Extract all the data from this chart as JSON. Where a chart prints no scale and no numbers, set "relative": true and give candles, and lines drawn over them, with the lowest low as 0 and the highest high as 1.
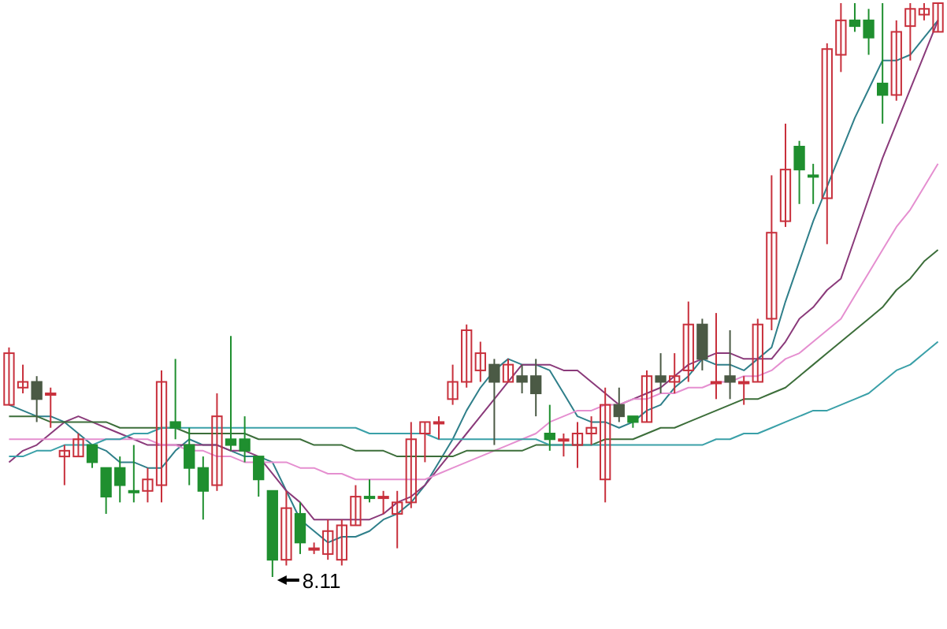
{
  "chart_data": {
    "type": "candlestick",
    "relative": true,
    "categories": [
      null,
      null,
      null,
      null,
      null,
      null,
      null,
      null,
      null,
      null,
      null,
      null,
      null,
      null,
      null,
      null,
      null,
      null,
      null,
      null,
      null,
      null,
      null,
      null,
      null,
      null,
      null,
      null,
      null,
      null,
      null,
      null,
      null,
      null,
      null,
      null,
      null,
      null,
      null,
      null,
      null,
      null,
      null,
      null,
      null,
      null,
      null,
      null,
      null,
      null,
      null,
      null,
      null,
      null,
      null,
      null,
      null,
      null,
      null,
      null,
      null,
      null,
      null,
      null,
      null,
      null,
      null,
      null
    ],
    "ohlc": [
      [
        0.3,
        0.4,
        0.3,
        0.39
      ],
      [
        0.33,
        0.37,
        0.32,
        0.34
      ],
      [
        0.34,
        0.35,
        0.27,
        0.31
      ],
      [
        0.32,
        0.33,
        0.26,
        0.32
      ],
      [
        0.21,
        0.23,
        0.16,
        0.22
      ],
      [
        0.21,
        0.25,
        0.21,
        0.24
      ],
      [
        0.23,
        0.23,
        0.19,
        0.2
      ],
      [
        0.19,
        0.19,
        0.11,
        0.14
      ],
      [
        0.19,
        0.21,
        0.13,
        0.16
      ],
      [
        0.15,
        0.23,
        0.13,
        0.15
      ],
      [
        0.15,
        0.19,
        0.13,
        0.17
      ],
      [
        0.16,
        0.36,
        0.13,
        0.34
      ],
      [
        0.27,
        0.38,
        0.24,
        0.26
      ],
      [
        0.23,
        0.26,
        0.16,
        0.19
      ],
      [
        0.19,
        0.21,
        0.1,
        0.15
      ],
      [
        0.16,
        0.32,
        0.15,
        0.28
      ],
      [
        0.24,
        0.42,
        0.22,
        0.23
      ],
      [
        0.24,
        0.28,
        0.2,
        0.22
      ],
      [
        0.21,
        0.21,
        0.14,
        0.17
      ],
      [
        0.15,
        0.15,
        0.0,
        0.03
      ],
      [
        0.03,
        0.15,
        0.02,
        0.12
      ],
      [
        0.11,
        0.13,
        0.04,
        0.06
      ],
      [
        0.05,
        0.06,
        0.04,
        0.05
      ],
      [
        0.04,
        0.1,
        0.03,
        0.08
      ],
      [
        0.03,
        0.1,
        0.02,
        0.09
      ],
      [
        0.09,
        0.16,
        0.09,
        0.14
      ],
      [
        0.14,
        0.17,
        0.13,
        0.14
      ],
      [
        0.14,
        0.15,
        0.11,
        0.14
      ],
      [
        0.11,
        0.15,
        0.05,
        0.13
      ],
      [
        0.13,
        0.27,
        0.12,
        0.24
      ],
      [
        0.25,
        0.27,
        0.2,
        0.27
      ],
      [
        0.27,
        0.28,
        0.24,
        0.27
      ],
      [
        0.31,
        0.37,
        0.3,
        0.34
      ],
      [
        0.34,
        0.44,
        0.33,
        0.43
      ],
      [
        0.36,
        0.41,
        0.34,
        0.39
      ],
      [
        0.37,
        0.38,
        0.23,
        0.34
      ],
      [
        0.34,
        0.38,
        0.34,
        0.37
      ],
      [
        0.35,
        0.37,
        0.32,
        0.34
      ],
      [
        0.35,
        0.38,
        0.28,
        0.32
      ],
      [
        0.25,
        0.3,
        0.22,
        0.24
      ],
      [
        0.24,
        0.25,
        0.21,
        0.24
      ],
      [
        0.23,
        0.27,
        0.19,
        0.25
      ],
      [
        0.25,
        0.28,
        0.23,
        0.26
      ],
      [
        0.17,
        0.33,
        0.13,
        0.3
      ],
      [
        0.3,
        0.33,
        0.27,
        0.28
      ],
      [
        0.28,
        0.28,
        0.26,
        0.27
      ],
      [
        0.27,
        0.36,
        0.27,
        0.35
      ],
      [
        0.35,
        0.39,
        0.32,
        0.34
      ],
      [
        0.34,
        0.39,
        0.32,
        0.35
      ],
      [
        0.36,
        0.48,
        0.34,
        0.44
      ],
      [
        0.44,
        0.45,
        0.36,
        0.38
      ],
      [
        0.34,
        0.46,
        0.31,
        0.34
      ],
      [
        0.35,
        0.43,
        0.31,
        0.34
      ],
      [
        0.34,
        0.35,
        0.3,
        0.34
      ],
      [
        0.34,
        0.45,
        0.34,
        0.44
      ],
      [
        0.45,
        0.7,
        0.43,
        0.6
      ],
      [
        0.62,
        0.79,
        0.61,
        0.71
      ],
      [
        0.75,
        0.76,
        0.65,
        0.71
      ],
      [
        0.7,
        0.72,
        0.65,
        0.7
      ],
      [
        0.66,
        0.93,
        0.58,
        0.92
      ],
      [
        0.91,
        1.0,
        0.88,
        0.97
      ],
      [
        0.97,
        1.0,
        0.95,
        0.96
      ],
      [
        0.97,
        0.99,
        0.91,
        0.94
      ],
      [
        0.86,
        1.0,
        0.79,
        0.84
      ],
      [
        0.84,
        0.97,
        0.83,
        0.95
      ],
      [
        0.96,
        1.0,
        0.9,
        0.99
      ],
      [
        0.98,
        1.0,
        0.97,
        0.99
      ],
      [
        0.95,
        1.0,
        0.95,
        1.0
      ]
    ],
    "colors": [
      "#c8303c",
      "#c8303c",
      "#4b5a45",
      "#c8303c",
      "#c8303c",
      "#c8303c",
      "#1f8f2f",
      "#1f8f2f",
      "#1f8f2f",
      "#1f8f2f",
      "#c8303c",
      "#c8303c",
      "#1f8f2f",
      "#1f8f2f",
      "#1f8f2f",
      "#c8303c",
      "#1f8f2f",
      "#1f8f2f",
      "#1f8f2f",
      "#1f8f2f",
      "#c8303c",
      "#1f8f2f",
      "#c8303c",
      "#c8303c",
      "#c8303c",
      "#c8303c",
      "#1f8f2f",
      "#c8303c",
      "#c8303c",
      "#c8303c",
      "#c8303c",
      "#c8303c",
      "#c8303c",
      "#c8303c",
      "#c8303c",
      "#4b5a45",
      "#c8303c",
      "#4b5a45",
      "#4b5a45",
      "#1f8f2f",
      "#c8303c",
      "#c8303c",
      "#c8303c",
      "#c8303c",
      "#4b5a45",
      "#1f8f2f",
      "#c8303c",
      "#4b5a45",
      "#c8303c",
      "#c8303c",
      "#4b5a45",
      "#c8303c",
      "#4b5a45",
      "#c8303c",
      "#c8303c",
      "#c8303c",
      "#c8303c",
      "#1f8f2f",
      "#1f8f2f",
      "#c8303c",
      "#c8303c",
      "#1f8f2f",
      "#1f8f2f",
      "#1f8f2f",
      "#c8303c",
      "#c8303c",
      "#c8303c",
      "#c8303c"
    ],
    "series": [
      {
        "type": "line",
        "color": "#2f7f8a",
        "values": [
          0.3,
          0.29,
          0.28,
          0.28,
          0.27,
          0.25,
          0.23,
          0.22,
          0.2,
          0.2,
          0.19,
          0.19,
          0.22,
          0.24,
          0.23,
          0.23,
          0.22,
          0.21,
          0.21,
          0.2,
          0.15,
          0.1,
          0.08,
          0.06,
          0.07,
          0.07,
          0.08,
          0.1,
          0.11,
          0.13,
          0.16,
          0.2,
          0.24,
          0.29,
          0.33,
          0.36,
          0.38,
          0.37,
          0.37,
          0.36,
          0.32,
          0.28,
          0.27,
          0.27,
          0.26,
          0.27,
          0.29,
          0.3,
          0.33,
          0.35,
          0.38,
          0.37,
          0.37,
          0.36,
          0.38,
          0.4,
          0.48,
          0.55,
          0.62,
          0.68,
          0.74,
          0.8,
          0.85,
          0.9,
          0.9,
          0.91,
          0.94,
          0.97
        ]
      },
      {
        "type": "line",
        "color": "#8a3a7a",
        "values": [
          0.2,
          0.22,
          0.23,
          0.25,
          0.27,
          0.28,
          0.27,
          0.26,
          0.25,
          0.24,
          0.23,
          0.23,
          0.23,
          0.23,
          0.23,
          0.23,
          0.22,
          0.22,
          0.21,
          0.18,
          0.15,
          0.13,
          0.1,
          0.1,
          0.1,
          0.1,
          0.1,
          0.11,
          0.13,
          0.14,
          0.16,
          0.19,
          0.22,
          0.25,
          0.28,
          0.31,
          0.34,
          0.37,
          0.37,
          0.37,
          0.36,
          0.36,
          0.34,
          0.32,
          0.3,
          0.31,
          0.32,
          0.33,
          0.35,
          0.37,
          0.38,
          0.39,
          0.39,
          0.38,
          0.38,
          0.38,
          0.41,
          0.45,
          0.47,
          0.5,
          0.52,
          0.59,
          0.66,
          0.73,
          0.79,
          0.85,
          0.91,
          0.97
        ]
      },
      {
        "type": "line",
        "color": "#e58fd0",
        "values": [
          0.24,
          0.24,
          0.24,
          0.24,
          0.24,
          0.24,
          0.24,
          0.24,
          0.24,
          0.24,
          0.24,
          0.23,
          0.23,
          0.22,
          0.22,
          0.21,
          0.21,
          0.2,
          0.2,
          0.2,
          0.2,
          0.19,
          0.19,
          0.18,
          0.18,
          0.17,
          0.17,
          0.17,
          0.17,
          0.17,
          0.17,
          0.18,
          0.19,
          0.2,
          0.21,
          0.22,
          0.23,
          0.24,
          0.25,
          0.27,
          0.28,
          0.29,
          0.29,
          0.3,
          0.3,
          0.31,
          0.31,
          0.32,
          0.32,
          0.33,
          0.33,
          0.34,
          0.34,
          0.35,
          0.35,
          0.36,
          0.38,
          0.39,
          0.41,
          0.43,
          0.45,
          0.49,
          0.53,
          0.57,
          0.61,
          0.64,
          0.68,
          0.72
        ]
      },
      {
        "type": "line",
        "color": "#3c6e3a",
        "values": [
          0.28,
          0.28,
          0.28,
          0.27,
          0.27,
          0.27,
          0.27,
          0.27,
          0.26,
          0.26,
          0.26,
          0.26,
          0.26,
          0.25,
          0.25,
          0.25,
          0.25,
          0.25,
          0.24,
          0.24,
          0.24,
          0.24,
          0.23,
          0.23,
          0.23,
          0.22,
          0.22,
          0.22,
          0.21,
          0.21,
          0.21,
          0.21,
          0.21,
          0.22,
          0.22,
          0.22,
          0.22,
          0.22,
          0.23,
          0.23,
          0.23,
          0.23,
          0.23,
          0.24,
          0.24,
          0.24,
          0.25,
          0.26,
          0.26,
          0.27,
          0.28,
          0.29,
          0.3,
          0.31,
          0.31,
          0.32,
          0.33,
          0.35,
          0.37,
          0.39,
          0.41,
          0.43,
          0.45,
          0.47,
          0.5,
          0.52,
          0.55,
          0.57
        ]
      },
      {
        "type": "line",
        "color": "#3aa0a8",
        "values": [
          0.21,
          0.21,
          0.22,
          0.22,
          0.23,
          0.23,
          0.23,
          0.24,
          0.24,
          0.25,
          0.25,
          0.26,
          0.26,
          0.26,
          0.26,
          0.26,
          0.26,
          0.26,
          0.26,
          0.26,
          0.26,
          0.26,
          0.26,
          0.26,
          0.26,
          0.26,
          0.25,
          0.25,
          0.25,
          0.25,
          0.25,
          0.24,
          0.24,
          0.24,
          0.24,
          0.24,
          0.24,
          0.24,
          0.24,
          0.23,
          0.23,
          0.23,
          0.23,
          0.23,
          0.23,
          0.23,
          0.23,
          0.23,
          0.23,
          0.23,
          0.23,
          0.24,
          0.24,
          0.25,
          0.25,
          0.26,
          0.27,
          0.28,
          0.29,
          0.29,
          0.3,
          0.31,
          0.32,
          0.34,
          0.36,
          0.37,
          0.39,
          0.41
        ]
      }
    ],
    "annotations": [
      "8.11"
    ]
  }
}
